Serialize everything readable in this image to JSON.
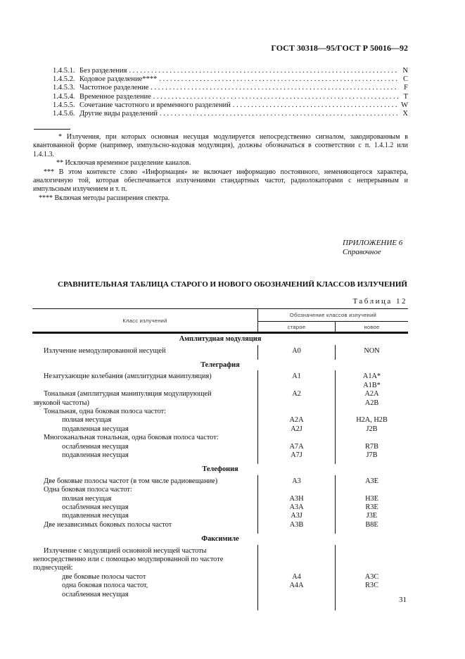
{
  "header": "ГОСТ 30318—95/ГОСТ Р 50016—92",
  "toc": [
    {
      "num": "1.4.5.1.",
      "text": "Без разделения",
      "code": "N"
    },
    {
      "num": "1.4.5.2.",
      "text": "Кодовое разделение****",
      "code": "C"
    },
    {
      "num": "1.4.5.3.",
      "text": "Частотное разделение",
      "code": "F"
    },
    {
      "num": "1.4.5.4.",
      "text": "Временное разделение",
      "code": "T"
    },
    {
      "num": "1.4.5.5.",
      "text": "Сочетание частотного и временного разделений",
      "code": "W"
    },
    {
      "num": "1.4.5.6.",
      "text": "Другие виды разделений",
      "code": "X"
    }
  ],
  "footnotes": [
    "* Излучения, при которых основная несущая модулируется непосредственно сигналом, закодированным в квантованной форме (например, импульсно-кодовая модуляция), должны обозначаться в соответствии с п. 1.4.1.2 или 1.4.1.3.",
    "** Исключая временное разделение каналов.",
    "*** В этом контексте слово «Информация» не включает информацию постоянного, неменяющегося характера, аналогичную той, которая обеспечивается излучениями стандартных частот, радиолокаторами с непрерывным и импульсным излучением и т. п.",
    "**** Включая методы расширения спектра."
  ],
  "appendix": {
    "label": "ПРИЛОЖЕНИЕ 6",
    "type": "Справочное"
  },
  "title": "СРАВНИТЕЛЬНАЯ ТАБЛИЦА СТАРОГО И НОВОГО ОБОЗНАЧЕНИЙ КЛАССОВ ИЗЛУЧЕНИЙ",
  "table_number": "Таблица 12",
  "table": {
    "headers": {
      "class": "Класс излучений",
      "group": "Обозначение классов излучений",
      "old": "старое",
      "new": "новое"
    },
    "rows": [
      {
        "section": "Амплитудная модуляция"
      },
      {
        "label": "Излучение немодулированной несущей",
        "level": 1,
        "old": "A0",
        "new": "NON"
      },
      {
        "section": "Телеграфия"
      },
      {
        "label": "Незатухающие колебания (амплитудная манипуляция)",
        "level": 1,
        "old": "A1",
        "new": "A1A*"
      },
      {
        "label": "",
        "level": 1,
        "old": "",
        "new": "A1B*"
      },
      {
        "label": "Тональная (амплитудная манипуляция модулирующей",
        "level": 1,
        "old": "A2",
        "new": "A2A"
      },
      {
        "label": "звуковой частоты)",
        "level": 0,
        "old": "",
        "new": "A2B"
      },
      {
        "label": "Тональная, одна боковая полоса частот:",
        "level": 1,
        "old": "",
        "new": ""
      },
      {
        "label": "полная несущая",
        "level": 2,
        "old": "A2A",
        "new": "H2A, H2B"
      },
      {
        "label": "подавленная несущая",
        "level": 2,
        "old": "A2J",
        "new": "J2B"
      },
      {
        "label": "Многоканальная тональная, одна боковая полоса частот:",
        "level": 1,
        "old": "",
        "new": ""
      },
      {
        "label": "ослабленная несущая",
        "level": 2,
        "old": "A7A",
        "new": "R7B"
      },
      {
        "label": "подавленная несущая",
        "level": 2,
        "old": "A7J",
        "new": "J7B"
      },
      {
        "section": "Телефония"
      },
      {
        "label": "Две боковые полосы частот (в том числе радиовещание)",
        "level": 1,
        "old": "A3",
        "new": "A3E"
      },
      {
        "label": "Одна боковая полоса частот:",
        "level": 1,
        "old": "",
        "new": ""
      },
      {
        "label": "полная несущая",
        "level": 2,
        "old": "A3H",
        "new": "H3E"
      },
      {
        "label": "ослабленная несущая",
        "level": 2,
        "old": "A3A",
        "new": "R3E"
      },
      {
        "label": "подавленная несущая",
        "level": 2,
        "old": "A3J",
        "new": "J3E"
      },
      {
        "label": "Две независимых боковых полосы частот",
        "level": 1,
        "old": "A3B",
        "new": "B8E"
      },
      {
        "section": "Факсимиле"
      },
      {
        "label": "Излучение с модуляцией основной несущей частоты",
        "level": 1,
        "old": "",
        "new": ""
      },
      {
        "label": "непосредственно или с помощью модулированной по частоте",
        "level": 0,
        "old": "",
        "new": ""
      },
      {
        "label": "поднесущей:",
        "level": 0,
        "old": "",
        "new": ""
      },
      {
        "label": "две боковые полосы частот",
        "level": 2,
        "old": "A4",
        "new": "A3C"
      },
      {
        "label": "одна боковая полоса частот,",
        "level": 2,
        "old": "A4A",
        "new": "R3C"
      },
      {
        "label": "ослабленная несущая",
        "level": 2,
        "old": "",
        "new": ""
      }
    ]
  },
  "page_number": "31"
}
